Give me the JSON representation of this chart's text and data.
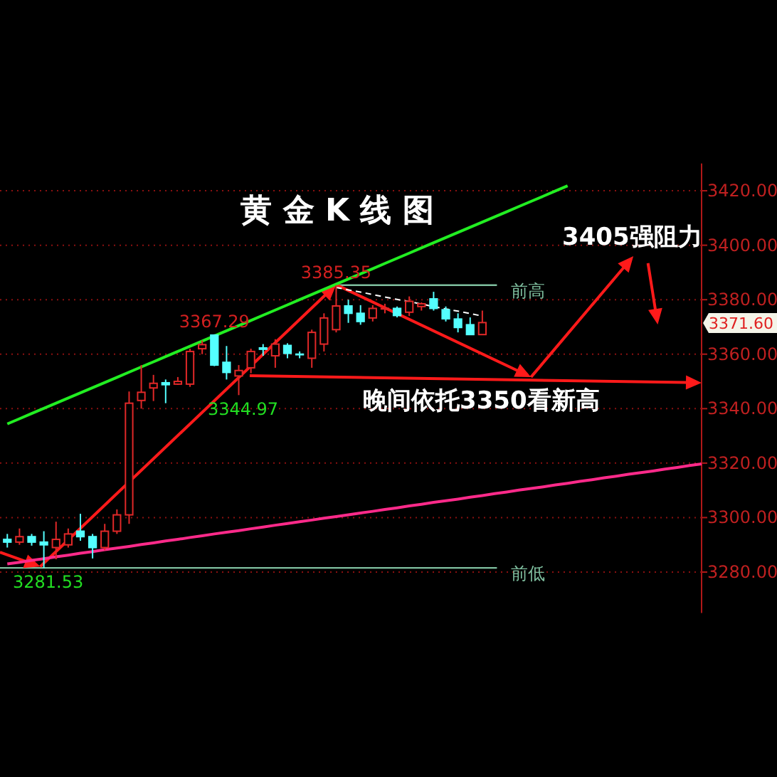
{
  "chart_data": {
    "type": "candlestick",
    "title": "黄 金 K 线 图",
    "categories": [
      null,
      null,
      null,
      null,
      null,
      null,
      null,
      null,
      null,
      null,
      null,
      null,
      null,
      null,
      null,
      null,
      null,
      null,
      null,
      null,
      null,
      null,
      null,
      null,
      null,
      null,
      null,
      null,
      null,
      null,
      null,
      null,
      null,
      null,
      null,
      null,
      null,
      null,
      null,
      null,
      null,
      null,
      null,
      null,
      null,
      null,
      null,
      null,
      null,
      null,
      null,
      null,
      null,
      null,
      null,
      null,
      null,
      null
    ],
    "ohlc": [
      [
        3292,
        3294,
        3289,
        3291
      ],
      [
        3291,
        3296,
        3290,
        3293
      ],
      [
        3293,
        3294,
        3289.7,
        3291
      ],
      [
        3291,
        3295,
        3281.53,
        3290
      ],
      [
        3289,
        3298.5,
        3284.7,
        3292
      ],
      [
        3290,
        3296,
        3289,
        3294
      ],
      [
        3295,
        3301.4,
        3291.5,
        3293
      ],
      [
        3293,
        3294,
        3285,
        3289
      ],
      [
        3289,
        3297.7,
        3288,
        3295
      ],
      [
        3295,
        3303,
        3294,
        3301
      ],
      [
        3301,
        3346.3,
        3297.7,
        3342
      ],
      [
        3343,
        3356,
        3340,
        3346
      ],
      [
        3347.6,
        3352.4,
        3342.8,
        3349.3
      ],
      [
        3349.5,
        3350.7,
        3342,
        3348.8
      ],
      [
        3349,
        3351.6,
        3348.7,
        3350
      ],
      [
        3349,
        3362,
        3348,
        3361
      ],
      [
        3362,
        3365,
        3360,
        3363.5
      ],
      [
        3367,
        3367.29,
        3355.6,
        3356
      ],
      [
        3357,
        3363,
        3350.7,
        3353.3
      ],
      [
        3352,
        3356,
        3344.97,
        3354
      ],
      [
        3355,
        3362,
        3353,
        3361
      ],
      [
        3362.3,
        3363.7,
        3359.4,
        3361.8
      ],
      [
        3359.4,
        3365.5,
        3355,
        3363.7
      ],
      [
        3363.2,
        3364,
        3358.5,
        3360.3
      ],
      [
        3360,
        3361,
        3358.5,
        3359.8
      ],
      [
        3358.5,
        3369,
        3355,
        3368
      ],
      [
        3363.7,
        3375,
        3361,
        3373.3
      ],
      [
        3369,
        3385.35,
        3368,
        3377.7
      ],
      [
        3377.7,
        3380,
        3371.5,
        3375
      ],
      [
        3375,
        3378,
        3370.8,
        3372
      ],
      [
        3373.3,
        3378,
        3372,
        3376.8
      ],
      [
        3376.6,
        3378.5,
        3375,
        3376.8
      ],
      [
        3376.8,
        3377.5,
        3373.5,
        3374.2
      ],
      [
        3375.4,
        3381.2,
        3374,
        3379.4
      ],
      [
        3377.5,
        3379,
        3376,
        3378.5
      ],
      [
        3380.3,
        3382.9,
        3376,
        3376.8
      ],
      [
        3376.3,
        3377.5,
        3372,
        3373
      ],
      [
        3372.9,
        3375,
        3368,
        3369.8
      ],
      [
        3370.8,
        3373.5,
        3367,
        3367.2
      ],
      [
        3367.2,
        3376,
        3367,
        3371.6
      ],
      null,
      null,
      null,
      null,
      null,
      null,
      null,
      null,
      null,
      null,
      null,
      null,
      null,
      null,
      null,
      null,
      null,
      null
    ],
    "ylim": [
      3265,
      3430
    ],
    "yticks": [
      {
        "value": 3280,
        "label": "3280.00"
      },
      {
        "value": 3300,
        "label": "3300.00"
      },
      {
        "value": 3320,
        "label": "3320.00"
      },
      {
        "value": 3340,
        "label": "3340.00"
      },
      {
        "value": 3360,
        "label": "3360.00"
      },
      {
        "value": 3380,
        "label": "3380.00"
      },
      {
        "value": 3400,
        "label": "3400.00"
      },
      {
        "value": 3420,
        "label": "3420.00"
      }
    ],
    "grid": "y",
    "series": [
      {
        "type": "line",
        "color": "#22ee22",
        "values": [
          3334.4,
          3336.3,
          3338.2,
          3340.1,
          3342.0,
          3343.9,
          3345.8,
          3347.7,
          3349.6,
          3351.5,
          3353.4,
          3355.3,
          3357.2,
          3359.1,
          3361.0,
          3362.9,
          3364.8,
          3366.7,
          3368.6,
          3370.5,
          3372.4,
          3374.3,
          3376.2,
          3378.1,
          3380.0,
          3381.9,
          3383.8,
          3385.7,
          3387.6,
          3389.5,
          3391.4,
          3393.3,
          3395.2,
          3397.1,
          3399.0,
          3400.9,
          3402.8,
          3404.7,
          3406.6,
          3408.5,
          3410.4,
          3412.3,
          3414.2,
          3416.1,
          3418.0,
          3419.9,
          3421.8,
          null,
          null,
          null,
          null,
          null,
          null,
          null,
          null,
          null,
          null,
          null
        ]
      },
      {
        "type": "line",
        "color": "#ff2a8a",
        "values": [
          3283.0,
          3283.6,
          3284.3,
          3284.9,
          3285.6,
          3286.2,
          3286.9,
          3287.5,
          3288.2,
          3288.8,
          3289.4,
          3290.1,
          3290.7,
          3291.4,
          3292.0,
          3292.7,
          3293.3,
          3294.0,
          3294.6,
          3295.2,
          3295.9,
          3296.5,
          3297.2,
          3297.8,
          3298.5,
          3299.1,
          3299.8,
          3300.4,
          3301.0,
          3301.7,
          3302.3,
          3303.0,
          3303.6,
          3304.3,
          3304.9,
          3305.6,
          3306.2,
          3306.8,
          3307.5,
          3308.1,
          3308.8,
          3309.4,
          3310.1,
          3310.7,
          3311.3,
          3312.0,
          3312.6,
          3313.3,
          3313.9,
          3314.6,
          3315.2,
          3315.9,
          3316.5,
          3317.1,
          3317.8,
          3318.4,
          3319.1,
          3319.7
        ]
      },
      {
        "type": "line",
        "color": "#ffffff",
        "line_style": "dashed",
        "values": [
          null,
          null,
          null,
          null,
          null,
          null,
          null,
          null,
          null,
          null,
          null,
          null,
          null,
          null,
          null,
          null,
          null,
          null,
          null,
          null,
          null,
          null,
          null,
          null,
          null,
          null,
          null,
          3384.5,
          3383.6,
          3382.8,
          3381.9,
          3381.0,
          3380.1,
          3379.3,
          3378.4,
          3377.5,
          3376.6,
          3375.8,
          3374.9,
          3374.0,
          null,
          null,
          null,
          null,
          null,
          null,
          null,
          null,
          null,
          null,
          null,
          null,
          null,
          null,
          null,
          null,
          null,
          null
        ]
      }
    ],
    "ref_lines": [
      {
        "axis": "y",
        "value": 3385.35,
        "label": "前高",
        "color": "#7fbf9f"
      },
      {
        "axis": "y",
        "value": 3281.53,
        "label": "前低",
        "color": "#7fbf9f"
      }
    ],
    "annotations": [
      {
        "text": "3367.29",
        "y": 3367.29
      },
      {
        "text": "3385.35",
        "y": 3385.35
      },
      {
        "text": "3344.97",
        "y": 3344.97
      },
      {
        "text": "3281.53",
        "y": 3281.53
      },
      "3371.60",
      "3405强阻力",
      "晚间依托3350看新高"
    ]
  }
}
